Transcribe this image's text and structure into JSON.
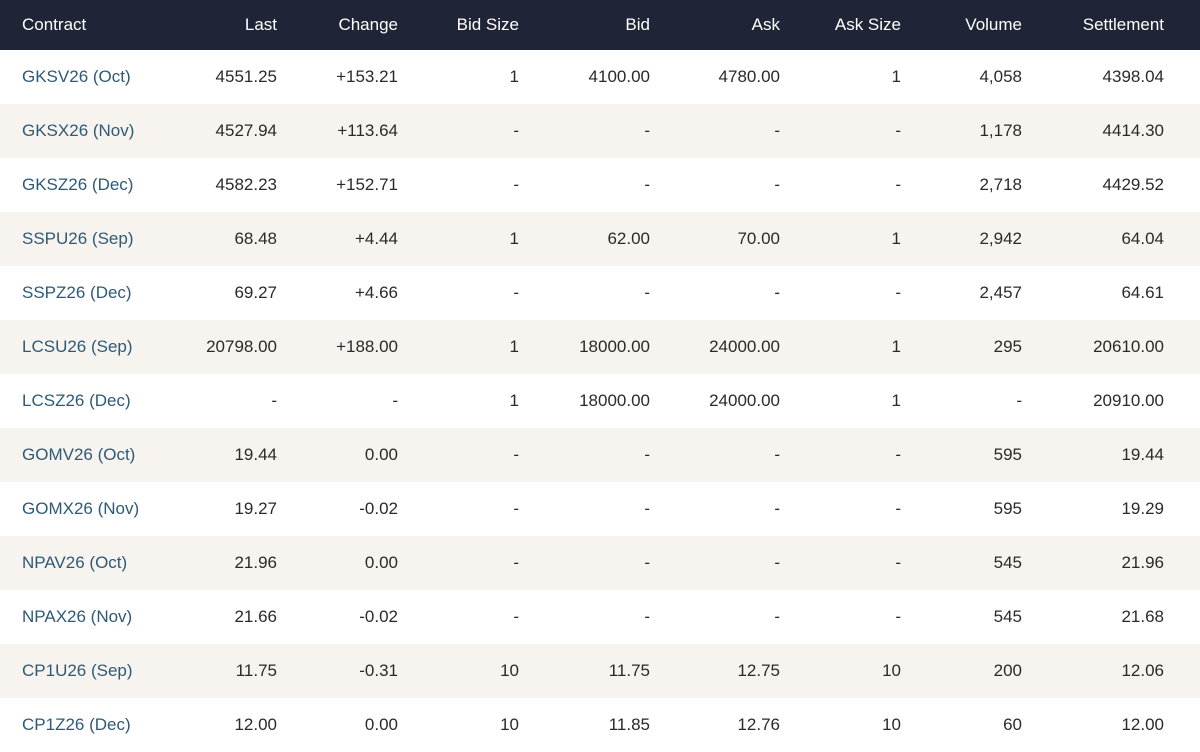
{
  "headers": {
    "contract": "Contract",
    "last": "Last",
    "change": "Change",
    "bid_size": "Bid Size",
    "bid": "Bid",
    "ask": "Ask",
    "ask_size": "Ask Size",
    "volume": "Volume",
    "settlement": "Settlement"
  },
  "rows": [
    {
      "contract": "GKSV26 (Oct)",
      "last": "4551.25",
      "change": "+153.21",
      "bid_size": "1",
      "bid": "4100.00",
      "ask": "4780.00",
      "ask_size": "1",
      "volume": "4,058",
      "settlement": "4398.04"
    },
    {
      "contract": "GKSX26 (Nov)",
      "last": "4527.94",
      "change": "+113.64",
      "bid_size": "-",
      "bid": "-",
      "ask": "-",
      "ask_size": "-",
      "volume": "1,178",
      "settlement": "4414.30"
    },
    {
      "contract": "GKSZ26 (Dec)",
      "last": "4582.23",
      "change": "+152.71",
      "bid_size": "-",
      "bid": "-",
      "ask": "-",
      "ask_size": "-",
      "volume": "2,718",
      "settlement": "4429.52"
    },
    {
      "contract": "SSPU26 (Sep)",
      "last": "68.48",
      "change": "+4.44",
      "bid_size": "1",
      "bid": "62.00",
      "ask": "70.00",
      "ask_size": "1",
      "volume": "2,942",
      "settlement": "64.04"
    },
    {
      "contract": "SSPZ26 (Dec)",
      "last": "69.27",
      "change": "+4.66",
      "bid_size": "-",
      "bid": "-",
      "ask": "-",
      "ask_size": "-",
      "volume": "2,457",
      "settlement": "64.61"
    },
    {
      "contract": "LCSU26 (Sep)",
      "last": "20798.00",
      "change": "+188.00",
      "bid_size": "1",
      "bid": "18000.00",
      "ask": "24000.00",
      "ask_size": "1",
      "volume": "295",
      "settlement": "20610.00"
    },
    {
      "contract": "LCSZ26 (Dec)",
      "last": "-",
      "change": "-",
      "bid_size": "1",
      "bid": "18000.00",
      "ask": "24000.00",
      "ask_size": "1",
      "volume": "-",
      "settlement": "20910.00"
    },
    {
      "contract": "GOMV26 (Oct)",
      "last": "19.44",
      "change": "0.00",
      "bid_size": "-",
      "bid": "-",
      "ask": "-",
      "ask_size": "-",
      "volume": "595",
      "settlement": "19.44"
    },
    {
      "contract": "GOMX26 (Nov)",
      "last": "19.27",
      "change": "-0.02",
      "bid_size": "-",
      "bid": "-",
      "ask": "-",
      "ask_size": "-",
      "volume": "595",
      "settlement": "19.29"
    },
    {
      "contract": "NPAV26 (Oct)",
      "last": "21.96",
      "change": "0.00",
      "bid_size": "-",
      "bid": "-",
      "ask": "-",
      "ask_size": "-",
      "volume": "545",
      "settlement": "21.96"
    },
    {
      "contract": "NPAX26 (Nov)",
      "last": "21.66",
      "change": "-0.02",
      "bid_size": "-",
      "bid": "-",
      "ask": "-",
      "ask_size": "-",
      "volume": "545",
      "settlement": "21.68"
    },
    {
      "contract": "CP1U26 (Sep)",
      "last": "11.75",
      "change": "-0.31",
      "bid_size": "10",
      "bid": "11.75",
      "ask": "12.75",
      "ask_size": "10",
      "volume": "200",
      "settlement": "12.06"
    },
    {
      "contract": "CP1Z26 (Dec)",
      "last": "12.00",
      "change": "0.00",
      "bid_size": "10",
      "bid": "11.85",
      "ask": "12.76",
      "ask_size": "10",
      "volume": "60",
      "settlement": "12.00"
    }
  ],
  "colors": {
    "header_bg": "#1f2437",
    "row_alt_bg": "#f7f3ef",
    "contract_link": "#2e5a76"
  }
}
